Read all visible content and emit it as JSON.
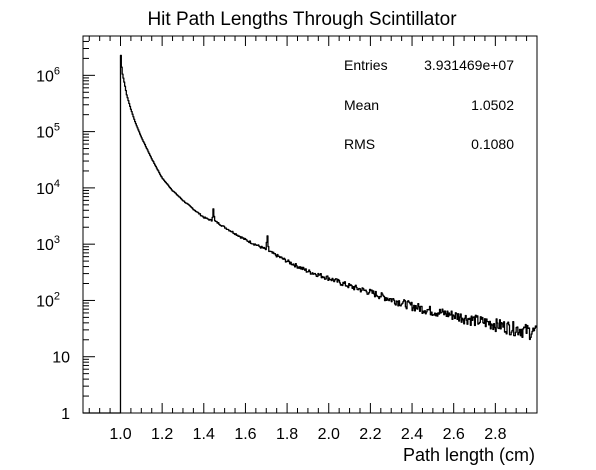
{
  "chart_data": {
    "type": "histogram",
    "title": "Hit Path Lengths Through Scintillator",
    "xlabel": "Path length (cm)",
    "ylabel": "",
    "xlim": [
      0.82,
      3.0
    ],
    "ylim": [
      1,
      5000000
    ],
    "log_y": true,
    "grid": false,
    "x_ticks": [
      {
        "value": 1.0,
        "label": "1.0"
      },
      {
        "value": 1.2,
        "label": "1.2"
      },
      {
        "value": 1.4,
        "label": "1.4"
      },
      {
        "value": 1.6,
        "label": "1.6"
      },
      {
        "value": 1.8,
        "label": "1.8"
      },
      {
        "value": 2.0,
        "label": "2.0"
      },
      {
        "value": 2.2,
        "label": "2.2"
      },
      {
        "value": 2.4,
        "label": "2.4"
      },
      {
        "value": 2.6,
        "label": "2.6"
      },
      {
        "value": 2.8,
        "label": "2.8"
      }
    ],
    "y_ticks": [
      {
        "value": 1,
        "label": "1"
      },
      {
        "value": 10,
        "label": "10"
      },
      {
        "value": 100,
        "label": "10",
        "sup": "2"
      },
      {
        "value": 1000,
        "label": "10",
        "sup": "3"
      },
      {
        "value": 10000,
        "label": "10",
        "sup": "4"
      },
      {
        "value": 100000,
        "label": "10",
        "sup": "5"
      },
      {
        "value": 1000000,
        "label": "10",
        "sup": "6"
      }
    ],
    "stats": [
      {
        "label": "Entries",
        "value": "3.931469e+07"
      },
      {
        "label": "Mean",
        "value": "1.0502"
      },
      {
        "label": "RMS",
        "value": "0.1080"
      }
    ],
    "series": [
      {
        "x": [
          0.82,
          1.0,
          1.001,
          1.005,
          1.01,
          1.02,
          1.03,
          1.05,
          1.07,
          1.1,
          1.15,
          1.2,
          1.25,
          1.3,
          1.35,
          1.4,
          1.44,
          1.446,
          1.452,
          1.5,
          1.6,
          1.7,
          1.705,
          1.712,
          1.8,
          1.9,
          2.0,
          2.1,
          2.2,
          2.3,
          2.4,
          2.5,
          2.6,
          2.7,
          2.8,
          2.9,
          3.0
        ],
        "y": [
          1,
          1,
          2600000,
          1500000,
          1050000,
          700000,
          450000,
          250000,
          150000,
          80000,
          33000,
          15000,
          9000,
          6000,
          4200,
          3000,
          2600,
          4300,
          2600,
          2000,
          1200,
          800,
          1500,
          750,
          500,
          330,
          250,
          180,
          140,
          105,
          80,
          65,
          55,
          45,
          38,
          32,
          27
        ]
      }
    ]
  }
}
